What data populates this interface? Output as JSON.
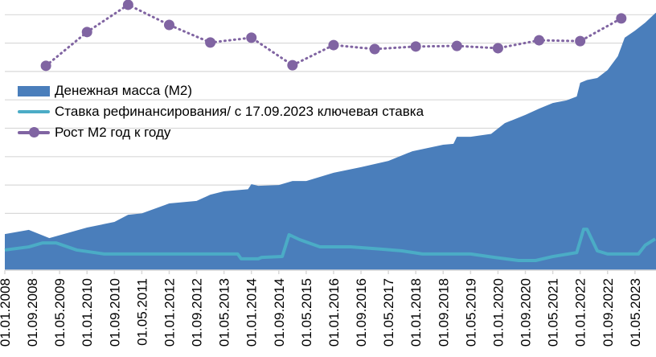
{
  "chart_data": {
    "type": "area+line",
    "title": "",
    "xlabel": "",
    "ylabel": "",
    "y_axis_labels_shown": false,
    "ylim": [
      0,
      9.5
    ],
    "grid": true,
    "legend_position": "left-middle",
    "colors": {
      "m2": "#4a7ebb",
      "rate": "#4bacc6",
      "growth": "#8064a2",
      "grid": "#d9d9d9"
    },
    "x_tick_labels": [
      "01.01.2008",
      "01.09.2008",
      "01.05.2009",
      "01.01.2010",
      "01.09.2010",
      "01.05.2011",
      "01.01.2012",
      "01.09.2012",
      "01.05.2013",
      "01.01.2014",
      "01.09.2014",
      "01.05.2015",
      "01.01.2016",
      "01.09.2016",
      "01.05.2017",
      "01.01.2018",
      "01.09.2018",
      "01.05.2019",
      "01.01.2020",
      "01.09.2020",
      "01.05.2021",
      "01.01.2022",
      "01.09.2022",
      "01.05.2023"
    ],
    "series": [
      {
        "name": "Денежная масса (М2)",
        "type": "area",
        "x": [
          "2008-01",
          "2008-08",
          "2009-02",
          "2010-01",
          "2010-09",
          "2011-01",
          "2011-05",
          "2012-01",
          "2012-09",
          "2013-01",
          "2013-05",
          "2013-12",
          "2014-01",
          "2014-03",
          "2014-09",
          "2015-01",
          "2015-05",
          "2016-01",
          "2016-09",
          "2017-05",
          "2017-12",
          "2018-09",
          "2018-12",
          "2019-01",
          "2019-05",
          "2019-11",
          "2020-03",
          "2020-09",
          "2021-01",
          "2021-05",
          "2021-09",
          "2021-12",
          "2022-01",
          "2022-03",
          "2022-06",
          "2022-09",
          "2022-12",
          "2023-02",
          "2023-05",
          "2023-08",
          "2023-11"
        ],
        "values": [
          1.27,
          1.42,
          1.13,
          1.5,
          1.7,
          1.95,
          2.0,
          2.35,
          2.44,
          2.66,
          2.78,
          2.85,
          3.03,
          2.97,
          3.0,
          3.14,
          3.14,
          3.43,
          3.63,
          3.85,
          4.19,
          4.42,
          4.45,
          4.7,
          4.7,
          4.8,
          5.18,
          5.47,
          5.69,
          5.89,
          5.98,
          6.12,
          6.6,
          6.7,
          6.77,
          7.05,
          7.54,
          8.19,
          8.44,
          8.72,
          9.06
        ]
      },
      {
        "name": "Ставка рефинансирования/ с 17.09.2023 ключевая ставка",
        "type": "line",
        "x": [
          "2008-01",
          "2008-08",
          "2008-12",
          "2009-04",
          "2009-10",
          "2010-06",
          "2011-05",
          "2012-01",
          "2013-09",
          "2013-10",
          "2014-03",
          "2014-04",
          "2014-10",
          "2014-12",
          "2015-03",
          "2015-09",
          "2016-06",
          "2017-03",
          "2017-09",
          "2018-03",
          "2019-05",
          "2019-12",
          "2020-07",
          "2020-12",
          "2021-05",
          "2021-12",
          "2022-02",
          "2022-03",
          "2022-06",
          "2022-09",
          "2023-06",
          "2023-08",
          "2023-11"
        ],
        "values": [
          0.71,
          0.82,
          0.96,
          0.96,
          0.71,
          0.57,
          0.57,
          0.57,
          0.57,
          0.4,
          0.4,
          0.45,
          0.48,
          1.25,
          1.08,
          0.82,
          0.82,
          0.74,
          0.68,
          0.57,
          0.57,
          0.45,
          0.34,
          0.34,
          0.48,
          0.62,
          1.44,
          1.44,
          0.68,
          0.57,
          0.57,
          0.88,
          1.1
        ]
      },
      {
        "name": "Рост М2 год к году",
        "type": "line-markers",
        "dotted": true,
        "x": [
          "2009-01",
          "2010-01",
          "2011-01",
          "2012-01",
          "2013-01",
          "2014-01",
          "2015-01",
          "2016-01",
          "2017-01",
          "2018-01",
          "2019-01",
          "2020-01",
          "2021-01",
          "2022-01",
          "2023-01"
        ],
        "values": [
          7.2,
          8.39,
          9.35,
          8.64,
          8.02,
          8.19,
          7.22,
          7.93,
          7.79,
          7.88,
          7.9,
          7.82,
          8.1,
          8.07,
          8.87
        ]
      }
    ]
  }
}
